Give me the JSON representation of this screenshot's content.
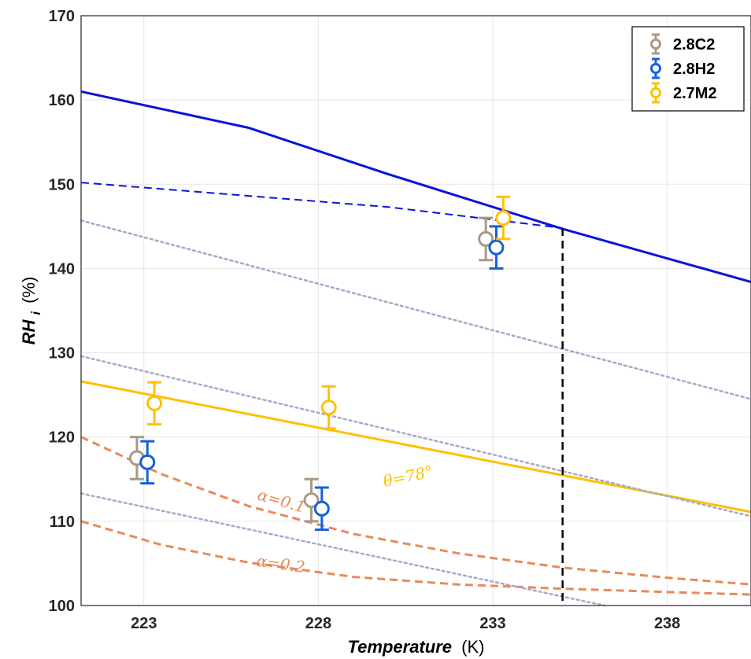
{
  "chart_data": {
    "type": "scatter",
    "xlabel_main": "Temperature",
    "xlabel_unit": "(K)",
    "ylabel_main": "RH",
    "ylabel_sub": "i",
    "ylabel_unit": "(%)",
    "xlim": [
      221.2,
      240.4
    ],
    "ylim": [
      100,
      170
    ],
    "xticks": [
      223,
      228,
      233,
      238
    ],
    "yticks": [
      100,
      110,
      120,
      130,
      140,
      150,
      160,
      170
    ],
    "grid": true,
    "legend_position": "top-right",
    "series": [
      {
        "name": "2.8C2",
        "color": "#a89888",
        "points": [
          {
            "x": 222.8,
            "y": 117.5,
            "err": 2.5
          },
          {
            "x": 227.8,
            "y": 112.5,
            "err": 2.5
          },
          {
            "x": 232.8,
            "y": 143.5,
            "err": 2.5
          }
        ]
      },
      {
        "name": "2.8H2",
        "color": "#1560e0",
        "points": [
          {
            "x": 223.1,
            "y": 117.0,
            "err": 2.5
          },
          {
            "x": 228.1,
            "y": 111.5,
            "err": 2.5
          },
          {
            "x": 233.1,
            "y": 142.5,
            "err": 2.5
          }
        ]
      },
      {
        "name": "2.7M2",
        "color": "#ffc000",
        "points": [
          {
            "x": 223.3,
            "y": 124.0,
            "err": 2.5
          },
          {
            "x": 228.3,
            "y": 123.5,
            "err": 2.5
          },
          {
            "x": 233.3,
            "y": 146.0,
            "err": 2.5
          }
        ]
      }
    ],
    "lines": [
      {
        "color": "#0a14d8",
        "style": "solid",
        "width": 3,
        "x": [
          221.2,
          226.0,
          230.0,
          235.0,
          240.4
        ],
        "y": [
          161.0,
          156.7,
          151.2,
          144.7,
          138.4
        ]
      },
      {
        "color": "#0a14d8",
        "style": "dashed",
        "width": 2,
        "x": [
          221.2,
          230.0,
          235.0
        ],
        "y": [
          150.2,
          147.3,
          144.8
        ]
      },
      {
        "color": "#ffc000",
        "style": "solid",
        "width": 3,
        "x": [
          221.2,
          240.4
        ],
        "y": [
          126.6,
          111.1
        ]
      },
      {
        "color": "#e88a5a",
        "style": "dashed",
        "width": 3,
        "x": [
          221.2,
          223.5,
          226.0,
          229.0,
          232.0,
          235.0,
          238.0,
          240.4
        ],
        "y": [
          120.0,
          115.6,
          111.8,
          108.5,
          106.2,
          104.5,
          103.3,
          102.5
        ]
      },
      {
        "color": "#e88a5a",
        "style": "dashed",
        "width": 3,
        "x": [
          221.2,
          223.5,
          226.0,
          229.0,
          232.0,
          235.0,
          238.0,
          240.4
        ],
        "y": [
          110.0,
          107.2,
          105.1,
          103.4,
          102.5,
          102.0,
          101.6,
          101.3
        ]
      },
      {
        "color": "#a8a8c8",
        "style": "dotted",
        "width": 2.5,
        "x": [
          221.2,
          240.4
        ],
        "y": [
          145.7,
          124.5
        ]
      },
      {
        "color": "#a8a8c8",
        "style": "dotted",
        "width": 2.5,
        "x": [
          221.2,
          240.4
        ],
        "y": [
          129.6,
          110.6
        ]
      },
      {
        "color": "#a8a8c8",
        "style": "dotted",
        "width": 2.5,
        "x": [
          221.2,
          236.2
        ],
        "y": [
          113.3,
          100.0
        ]
      },
      {
        "color": "#000000",
        "style": "dashed",
        "width": 2.5,
        "x": [
          235.0,
          235.0
        ],
        "y": [
          144.8,
          100.0
        ]
      }
    ],
    "annotations": [
      {
        "text": "θ=78°",
        "color": "#ffc000",
        "x": 230.6,
        "y": 114.7,
        "angle": -12
      },
      {
        "text": "α=0.1",
        "color": "#e88a5a",
        "x": 226.9,
        "y": 111.8,
        "angle": 16
      },
      {
        "text": "α=0.2",
        "color": "#e88a5a",
        "x": 226.9,
        "y": 104.3,
        "angle": 8
      }
    ]
  }
}
